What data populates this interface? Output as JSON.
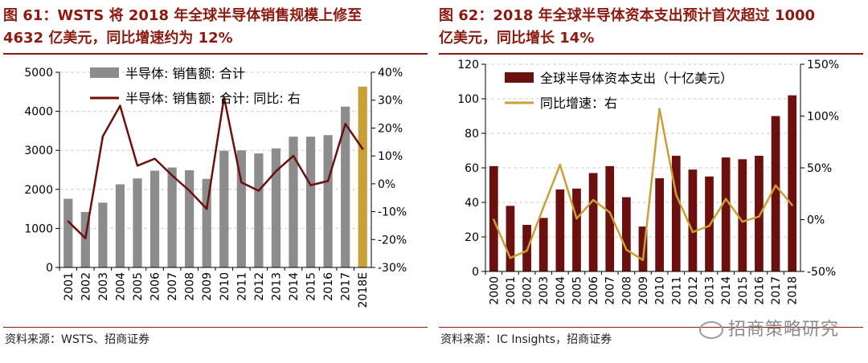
{
  "left": {
    "title_line1": "图 61：WSTS 将 2018 年全球半导体销售规模上修至",
    "title_line2": "4632 亿美元，同比增速约为 12%",
    "source": "资料来源：WSTS、招商证券",
    "colors": {
      "bar": "#8c8c8c",
      "bar_highlight": "#c8a036",
      "line": "#6b0f0f",
      "title": "#8b1a10"
    }
  },
  "right": {
    "title_line1": "图 62：2018 年全球半导体资本支出预计首次超过 1000",
    "title_line2": "亿美元，同比增长 14%",
    "source": "资料来源：IC Insights，招商证券",
    "colors": {
      "bar": "#6b0f0f",
      "line": "#c8a036",
      "title": "#8b1a10"
    }
  },
  "watermark": "招商策略研究",
  "chart_data": [
    {
      "type": "bar",
      "categories": [
        "2001",
        "2002",
        "2003",
        "2004",
        "2005",
        "2006",
        "2007",
        "2008",
        "2009",
        "2010",
        "2011",
        "2012",
        "2013",
        "2014",
        "2015",
        "2016",
        "2017",
        "2018E"
      ],
      "series": [
        {
          "name": "半导体: 销售额: 合计",
          "type": "bar",
          "axis": "left",
          "values": [
            1760,
            1420,
            1660,
            2130,
            2280,
            2480,
            2560,
            2490,
            2270,
            2990,
            3000,
            2920,
            3050,
            3350,
            3350,
            3390,
            4120,
            4632
          ]
        },
        {
          "name": "半导体: 销售额: 合计: 同比: 右",
          "type": "line",
          "axis": "right",
          "values": [
            -13.5,
            -19.5,
            17,
            28,
            6.5,
            9,
            3,
            -2.5,
            -9,
            31,
            0.5,
            -2.5,
            4.5,
            10,
            -0.5,
            1,
            21.5,
            12.5
          ]
        }
      ],
      "highlight_index": 17,
      "ylim_left": [
        0,
        5000
      ],
      "yticks_left": [
        "0",
        "1000",
        "2000",
        "3000",
        "4000",
        "5000"
      ],
      "ylim_right": [
        -30,
        40
      ],
      "yticks_right": [
        "-30%",
        "-20%",
        "-10%",
        "0%",
        "10%",
        "20%",
        "30%",
        "40%"
      ],
      "legend": "top-center",
      "grid": "horizontal dashed"
    },
    {
      "type": "bar",
      "categories": [
        "2000",
        "2001",
        "2002",
        "2003",
        "2004",
        "2005",
        "2006",
        "2007",
        "2008",
        "2009",
        "2010",
        "2011",
        "2012",
        "2013",
        "2014",
        "2015",
        "2016",
        "2017",
        "2018"
      ],
      "series": [
        {
          "name": "全球半导体资本支出（十亿美元）",
          "type": "bar",
          "axis": "left",
          "values": [
            61,
            38,
            27,
            31,
            47.5,
            48,
            57,
            61,
            43,
            26,
            54,
            67,
            59,
            55,
            66,
            65,
            67,
            90,
            102
          ]
        },
        {
          "name": "同比增速：右",
          "type": "line",
          "axis": "right",
          "values": [
            0,
            -37,
            -30,
            12,
            53,
            1,
            19,
            7,
            -29,
            -39,
            107,
            24,
            -12,
            -6,
            20,
            -2,
            3,
            33,
            14
          ]
        }
      ],
      "ylim_left": [
        0,
        120
      ],
      "yticks_left": [
        "0",
        "20",
        "40",
        "60",
        "80",
        "100",
        "120"
      ],
      "ylim_right": [
        -50,
        150
      ],
      "yticks_right": [
        "-50%",
        "0%",
        "50%",
        "100%",
        "150%"
      ],
      "legend": "top-left",
      "grid": "horizontal dashed"
    }
  ]
}
